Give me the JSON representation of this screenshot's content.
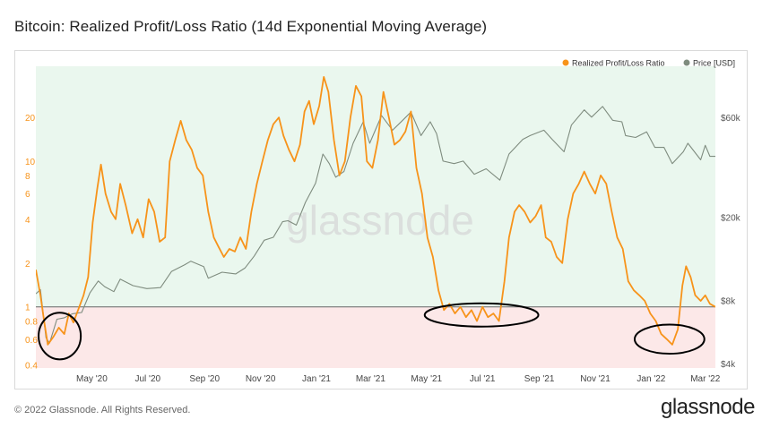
{
  "title": "Bitcoin: Realized Profit/Loss Ratio (14d Exponential Moving Average)",
  "footer": "© 2022 Glassnode. All Rights Reserved.",
  "brand": "glassnode",
  "watermark": "glassnode",
  "colors": {
    "ratio": "#f7931a",
    "price": "#7f8c7f",
    "profit_zone": "#eaf7ee",
    "loss_zone": "#fce8e8",
    "baseline": "#666666",
    "circle": "#000000"
  },
  "chart_data": {
    "type": "line",
    "title": "Bitcoin: Realized Profit/Loss Ratio (14d Exponential Moving Average)",
    "legend": {
      "position": "top-right",
      "entries": [
        {
          "name": "Realized Profit/Loss Ratio",
          "color": "#f7931a"
        },
        {
          "name": "Price [USD]",
          "color": "#7f8c7f"
        }
      ]
    },
    "x_axis": {
      "start": "2020-03-01",
      "end": "2022-03-12",
      "ticks": [
        {
          "date": "2020-05-01",
          "label": "May '20"
        },
        {
          "date": "2020-07-01",
          "label": "Jul '20"
        },
        {
          "date": "2020-09-01",
          "label": "Sep '20"
        },
        {
          "date": "2020-11-01",
          "label": "Nov '20"
        },
        {
          "date": "2021-01-01",
          "label": "Jan '21"
        },
        {
          "date": "2021-03-01",
          "label": "Mar '21"
        },
        {
          "date": "2021-05-01",
          "label": "May '21"
        },
        {
          "date": "2021-07-01",
          "label": "Jul '21"
        },
        {
          "date": "2021-09-01",
          "label": "Sep '21"
        },
        {
          "date": "2021-11-01",
          "label": "Nov '21"
        },
        {
          "date": "2022-01-01",
          "label": "Jan '22"
        },
        {
          "date": "2022-03-01",
          "label": "Mar '22"
        }
      ]
    },
    "y_left": {
      "scale": "log",
      "range": [
        0.38,
        45
      ],
      "ticks": [
        {
          "value": 0.4,
          "label": "0.4"
        },
        {
          "value": 0.6,
          "label": "0.6"
        },
        {
          "value": 0.8,
          "label": "0.8"
        },
        {
          "value": 1,
          "label": "1"
        },
        {
          "value": 2,
          "label": "2"
        },
        {
          "value": 4,
          "label": "4"
        },
        {
          "value": 6,
          "label": "6"
        },
        {
          "value": 8,
          "label": "8"
        },
        {
          "value": 10,
          "label": "10"
        },
        {
          "value": 20,
          "label": "20"
        }
      ],
      "threshold": 1
    },
    "y_right": {
      "scale": "log",
      "range": [
        3800,
        105000
      ],
      "ticks": [
        {
          "value": 4000,
          "label": "$4k"
        },
        {
          "value": 8000,
          "label": "$8k"
        },
        {
          "value": 20000,
          "label": "$20k"
        },
        {
          "value": 60000,
          "label": "$60k"
        }
      ]
    },
    "series": [
      {
        "name": "Realized Profit/Loss Ratio",
        "axis": "left",
        "points": [
          [
            "2020-03-01",
            1.8
          ],
          [
            "2020-03-06",
            1.2
          ],
          [
            "2020-03-10",
            0.8
          ],
          [
            "2020-03-14",
            0.55
          ],
          [
            "2020-03-20",
            0.62
          ],
          [
            "2020-03-26",
            0.72
          ],
          [
            "2020-04-01",
            0.65
          ],
          [
            "2020-04-06",
            0.9
          ],
          [
            "2020-04-11",
            0.78
          ],
          [
            "2020-04-16",
            0.95
          ],
          [
            "2020-04-22",
            1.2
          ],
          [
            "2020-04-27",
            1.6
          ],
          [
            "2020-05-02",
            3.8
          ],
          [
            "2020-05-07",
            6.5
          ],
          [
            "2020-05-11",
            9.5
          ],
          [
            "2020-05-16",
            6.0
          ],
          [
            "2020-05-22",
            4.5
          ],
          [
            "2020-05-27",
            4.0
          ],
          [
            "2020-06-01",
            7.0
          ],
          [
            "2020-06-07",
            5.0
          ],
          [
            "2020-06-14",
            3.2
          ],
          [
            "2020-06-20",
            4.0
          ],
          [
            "2020-06-26",
            3.0
          ],
          [
            "2020-07-02",
            5.5
          ],
          [
            "2020-07-08",
            4.5
          ],
          [
            "2020-07-14",
            2.8
          ],
          [
            "2020-07-20",
            3.0
          ],
          [
            "2020-07-25",
            10.0
          ],
          [
            "2020-07-31",
            14.0
          ],
          [
            "2020-08-06",
            19.0
          ],
          [
            "2020-08-12",
            14.0
          ],
          [
            "2020-08-18",
            12.0
          ],
          [
            "2020-08-24",
            9.0
          ],
          [
            "2020-08-30",
            8.0
          ],
          [
            "2020-09-05",
            4.5
          ],
          [
            "2020-09-11",
            3.0
          ],
          [
            "2020-09-16",
            2.6
          ],
          [
            "2020-09-22",
            2.2
          ],
          [
            "2020-09-28",
            2.5
          ],
          [
            "2020-10-04",
            2.4
          ],
          [
            "2020-10-10",
            3.0
          ],
          [
            "2020-10-16",
            2.5
          ],
          [
            "2020-10-22",
            4.5
          ],
          [
            "2020-10-28",
            7.0
          ],
          [
            "2020-11-03",
            10.0
          ],
          [
            "2020-11-09",
            14.0
          ],
          [
            "2020-11-15",
            18.0
          ],
          [
            "2020-11-21",
            20.0
          ],
          [
            "2020-11-26",
            15.0
          ],
          [
            "2020-12-02",
            12.0
          ],
          [
            "2020-12-08",
            10.0
          ],
          [
            "2020-12-14",
            13.0
          ],
          [
            "2020-12-19",
            22.0
          ],
          [
            "2020-12-24",
            26.0
          ],
          [
            "2020-12-29",
            18.0
          ],
          [
            "2021-01-04",
            24.0
          ],
          [
            "2021-01-09",
            38.0
          ],
          [
            "2021-01-14",
            30.0
          ],
          [
            "2021-01-20",
            14.0
          ],
          [
            "2021-01-26",
            8.0
          ],
          [
            "2021-02-01",
            10.0
          ],
          [
            "2021-02-07",
            20.0
          ],
          [
            "2021-02-13",
            33.0
          ],
          [
            "2021-02-19",
            28.0
          ],
          [
            "2021-02-25",
            10.0
          ],
          [
            "2021-03-03",
            9.0
          ],
          [
            "2021-03-09",
            14.0
          ],
          [
            "2021-03-15",
            30.0
          ],
          [
            "2021-03-21",
            20.0
          ],
          [
            "2021-03-27",
            13.0
          ],
          [
            "2021-04-02",
            14.0
          ],
          [
            "2021-04-08",
            16.0
          ],
          [
            "2021-04-14",
            22.0
          ],
          [
            "2021-04-20",
            9.0
          ],
          [
            "2021-04-26",
            6.0
          ],
          [
            "2021-05-02",
            3.0
          ],
          [
            "2021-05-08",
            2.2
          ],
          [
            "2021-05-14",
            1.3
          ],
          [
            "2021-05-20",
            0.95
          ],
          [
            "2021-05-26",
            1.05
          ],
          [
            "2021-06-01",
            0.9
          ],
          [
            "2021-06-07",
            1.0
          ],
          [
            "2021-06-13",
            0.85
          ],
          [
            "2021-06-19",
            0.95
          ],
          [
            "2021-06-25",
            0.8
          ],
          [
            "2021-07-01",
            1.0
          ],
          [
            "2021-07-07",
            0.85
          ],
          [
            "2021-07-13",
            0.9
          ],
          [
            "2021-07-19",
            0.8
          ],
          [
            "2021-07-25",
            1.5
          ],
          [
            "2021-07-30",
            3.0
          ],
          [
            "2021-08-05",
            4.5
          ],
          [
            "2021-08-10",
            5.0
          ],
          [
            "2021-08-16",
            4.5
          ],
          [
            "2021-08-22",
            3.8
          ],
          [
            "2021-08-28",
            4.2
          ],
          [
            "2021-09-03",
            5.0
          ],
          [
            "2021-09-08",
            3.0
          ],
          [
            "2021-09-14",
            2.8
          ],
          [
            "2021-09-20",
            2.2
          ],
          [
            "2021-09-26",
            2.0
          ],
          [
            "2021-10-02",
            4.0
          ],
          [
            "2021-10-08",
            6.0
          ],
          [
            "2021-10-14",
            7.0
          ],
          [
            "2021-10-20",
            8.5
          ],
          [
            "2021-10-26",
            7.0
          ],
          [
            "2021-11-01",
            6.0
          ],
          [
            "2021-11-07",
            8.0
          ],
          [
            "2021-11-13",
            7.0
          ],
          [
            "2021-11-19",
            4.5
          ],
          [
            "2021-11-25",
            3.0
          ],
          [
            "2021-12-01",
            2.5
          ],
          [
            "2021-12-07",
            1.5
          ],
          [
            "2021-12-13",
            1.3
          ],
          [
            "2021-12-19",
            1.2
          ],
          [
            "2021-12-25",
            1.1
          ],
          [
            "2021-12-31",
            0.9
          ],
          [
            "2022-01-06",
            0.8
          ],
          [
            "2022-01-12",
            0.65
          ],
          [
            "2022-01-18",
            0.6
          ],
          [
            "2022-01-24",
            0.55
          ],
          [
            "2022-01-30",
            0.7
          ],
          [
            "2022-02-04",
            1.4
          ],
          [
            "2022-02-08",
            1.9
          ],
          [
            "2022-02-13",
            1.6
          ],
          [
            "2022-02-18",
            1.2
          ],
          [
            "2022-02-24",
            1.1
          ],
          [
            "2022-03-01",
            1.2
          ],
          [
            "2022-03-06",
            1.05
          ],
          [
            "2022-03-12",
            1.0
          ]
        ]
      },
      {
        "name": "Price [USD]",
        "axis": "right",
        "points": [
          [
            "2020-03-01",
            8600
          ],
          [
            "2020-03-06",
            9000
          ],
          [
            "2020-03-12",
            5300
          ],
          [
            "2020-03-16",
            5000
          ],
          [
            "2020-03-24",
            6500
          ],
          [
            "2020-04-01",
            6600
          ],
          [
            "2020-04-10",
            6900
          ],
          [
            "2020-04-20",
            7000
          ],
          [
            "2020-04-29",
            8700
          ],
          [
            "2020-05-08",
            9900
          ],
          [
            "2020-05-15",
            9300
          ],
          [
            "2020-05-25",
            8800
          ],
          [
            "2020-06-01",
            10100
          ],
          [
            "2020-06-15",
            9400
          ],
          [
            "2020-06-30",
            9100
          ],
          [
            "2020-07-15",
            9200
          ],
          [
            "2020-07-27",
            11000
          ],
          [
            "2020-08-10",
            11800
          ],
          [
            "2020-08-17",
            12300
          ],
          [
            "2020-08-31",
            11600
          ],
          [
            "2020-09-05",
            10200
          ],
          [
            "2020-09-20",
            10900
          ],
          [
            "2020-10-05",
            10700
          ],
          [
            "2020-10-15",
            11400
          ],
          [
            "2020-10-25",
            13000
          ],
          [
            "2020-11-05",
            15500
          ],
          [
            "2020-11-15",
            16000
          ],
          [
            "2020-11-25",
            19000
          ],
          [
            "2020-12-01",
            19200
          ],
          [
            "2020-12-10",
            18300
          ],
          [
            "2020-12-20",
            23500
          ],
          [
            "2020-12-31",
            29000
          ],
          [
            "2021-01-08",
            40000
          ],
          [
            "2021-01-15",
            36000
          ],
          [
            "2021-01-22",
            31000
          ],
          [
            "2021-01-31",
            33000
          ],
          [
            "2021-02-10",
            45000
          ],
          [
            "2021-02-21",
            57000
          ],
          [
            "2021-02-28",
            45000
          ],
          [
            "2021-03-13",
            61000
          ],
          [
            "2021-03-25",
            52000
          ],
          [
            "2021-04-05",
            58000
          ],
          [
            "2021-04-14",
            63500
          ],
          [
            "2021-04-25",
            49000
          ],
          [
            "2021-05-05",
            57000
          ],
          [
            "2021-05-12",
            50000
          ],
          [
            "2021-05-19",
            37000
          ],
          [
            "2021-05-31",
            36000
          ],
          [
            "2021-06-10",
            37000
          ],
          [
            "2021-06-22",
            32000
          ],
          [
            "2021-07-05",
            34000
          ],
          [
            "2021-07-20",
            30000
          ],
          [
            "2021-07-30",
            40000
          ],
          [
            "2021-08-14",
            47000
          ],
          [
            "2021-08-22",
            49000
          ],
          [
            "2021-09-06",
            52000
          ],
          [
            "2021-09-15",
            47000
          ],
          [
            "2021-09-28",
            41000
          ],
          [
            "2021-10-06",
            55000
          ],
          [
            "2021-10-20",
            65000
          ],
          [
            "2021-10-28",
            60000
          ],
          [
            "2021-11-09",
            67500
          ],
          [
            "2021-11-20",
            58000
          ],
          [
            "2021-11-30",
            57000
          ],
          [
            "2021-12-04",
            49000
          ],
          [
            "2021-12-15",
            48000
          ],
          [
            "2021-12-27",
            51000
          ],
          [
            "2022-01-05",
            43000
          ],
          [
            "2022-01-15",
            43000
          ],
          [
            "2022-01-24",
            36000
          ],
          [
            "2022-02-05",
            41000
          ],
          [
            "2022-02-10",
            45000
          ],
          [
            "2022-02-24",
            37500
          ],
          [
            "2022-03-01",
            44000
          ],
          [
            "2022-03-06",
            39000
          ],
          [
            "2022-03-12",
            39000
          ]
        ]
      }
    ],
    "annotations": [
      {
        "shape": "ellipse",
        "cx_date": "2020-03-27",
        "cy_value": 0.63,
        "rx_days": 23,
        "ry_log_decades": 0.16
      },
      {
        "shape": "ellipse",
        "cx_date": "2021-06-30",
        "cy_value": 0.88,
        "rx_days": 62,
        "ry_log_decades": 0.08
      },
      {
        "shape": "ellipse",
        "cx_date": "2022-01-21",
        "cy_value": 0.6,
        "rx_days": 38,
        "ry_log_decades": 0.1
      }
    ]
  }
}
